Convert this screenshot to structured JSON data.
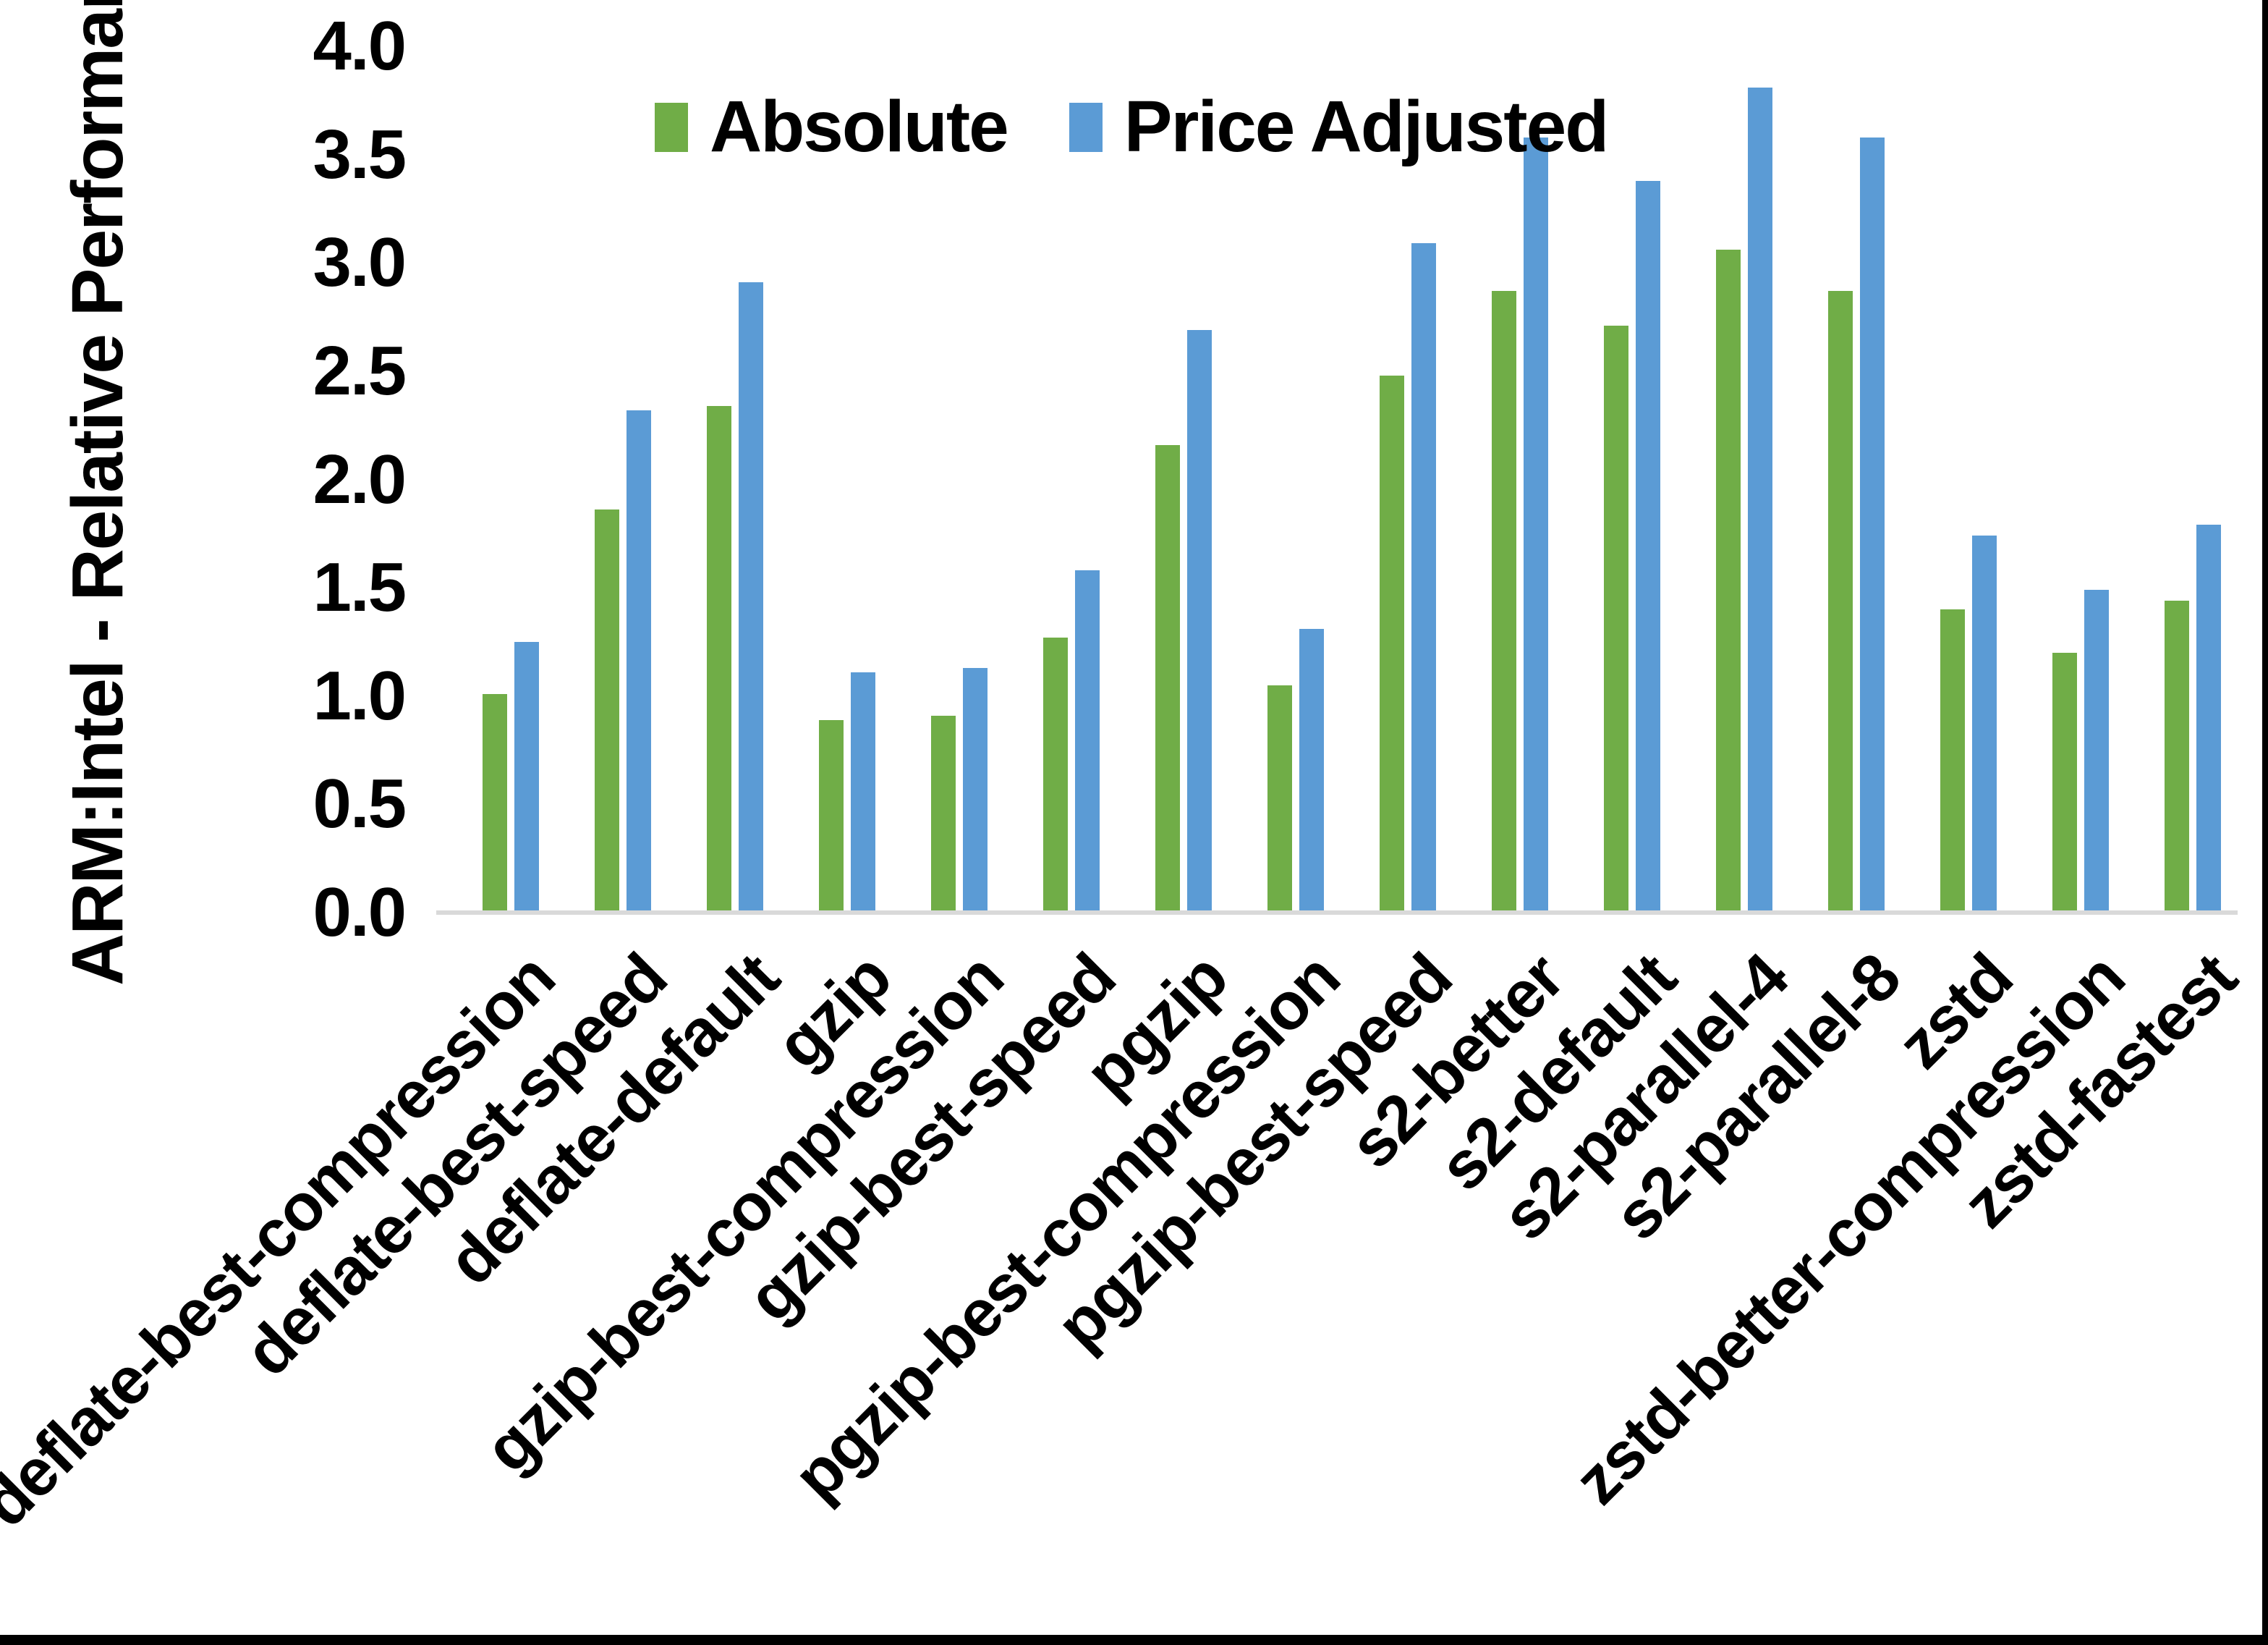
{
  "chart_data": {
    "type": "bar",
    "title": "",
    "xlabel": "",
    "ylabel": "ARM:Intel - Relative Performance",
    "ylim": [
      0.0,
      4.0
    ],
    "ytick_step": 0.5,
    "grid": false,
    "legend_position": "top-center",
    "categories": [
      "deflate-best-compression",
      "deflate-best-speed",
      "deflate-default",
      "gzip",
      "gzip-best-compression",
      "gzip-best-speed",
      "pgzip",
      "pgzip-best-compression",
      "pgzip-best-speed",
      "s2-better",
      "s2-default",
      "s2-parallel-4",
      "s2-parallel-8",
      "zstd",
      "zstd-better-compression",
      "zstd-fastest"
    ],
    "series": [
      {
        "name": "Absolute",
        "color": "#70AD47",
        "values": [
          1.0,
          1.85,
          2.33,
          0.88,
          0.9,
          1.26,
          2.15,
          1.04,
          2.47,
          2.86,
          2.7,
          3.05,
          2.86,
          1.39,
          1.19,
          1.43
        ]
      },
      {
        "name": "Price Adjusted",
        "color": "#5B9BD5",
        "values": [
          1.24,
          2.31,
          2.9,
          1.1,
          1.12,
          1.57,
          2.68,
          1.3,
          3.08,
          3.57,
          3.37,
          3.8,
          3.57,
          1.73,
          1.48,
          1.78
        ]
      }
    ]
  },
  "y_axis": {
    "title": "ARM:Intel - Relative Performance",
    "ticks": [
      "4.0",
      "3.5",
      "3.0",
      "2.5",
      "2.0",
      "1.5",
      "1.0",
      "0.5",
      "0.0"
    ]
  },
  "legend": {
    "items": [
      {
        "label": "Absolute",
        "color": "#70AD47"
      },
      {
        "label": "Price Adjusted",
        "color": "#5B9BD5"
      }
    ]
  },
  "colors": {
    "background": "#FFFFFF",
    "text": "#000000",
    "axis_line": "#D9D9D9",
    "bar_absolute": "#70AD47",
    "bar_price_adjusted": "#5B9BD5",
    "frame": "#000000"
  }
}
